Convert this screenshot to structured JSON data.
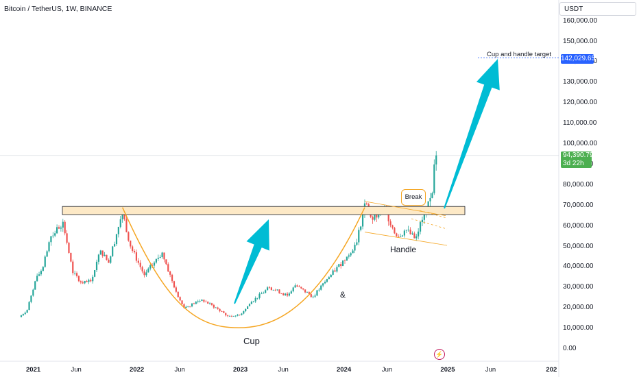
{
  "header": {
    "symbol_title": "Bitcoin / TetherUS, 1W, BINANCE",
    "currency": "USDT"
  },
  "price_axis": {
    "labels": [
      "160,000.00",
      "150,000.00",
      "140,000.00",
      "130,000.00",
      "120,000.00",
      "110,000.00",
      "100,000.00",
      "90,000.00",
      "80,000.00",
      "70,000.00",
      "60,000.00",
      "50,000.00",
      "40,000.00",
      "30,000.00",
      "20,000.00",
      "10,000.00",
      "0.00"
    ],
    "target_tag": "142,029.65",
    "last_price_tag": "94,390.79",
    "countdown": "3d 22h"
  },
  "time_axis": {
    "labels": [
      {
        "text": "2021",
        "bold": true
      },
      {
        "text": "Jun",
        "bold": false
      },
      {
        "text": "2022",
        "bold": true
      },
      {
        "text": "Jun",
        "bold": false
      },
      {
        "text": "2023",
        "bold": true
      },
      {
        "text": "Jun",
        "bold": false
      },
      {
        "text": "2024",
        "bold": true
      },
      {
        "text": "Jun",
        "bold": false
      },
      {
        "text": "2025",
        "bold": true
      },
      {
        "text": "Jun",
        "bold": false
      },
      {
        "text": "202",
        "bold": true
      }
    ]
  },
  "annotations": {
    "cup": "Cup",
    "ampersand": "&",
    "handle": "Handle",
    "break": "Break",
    "target": "Cup and handle target"
  },
  "colors": {
    "up": "#26a69a",
    "down": "#ef5350",
    "cup_line": "#f5a623",
    "zone_fill": "#fde9c6",
    "arrow": "#00bcd4",
    "target_tag": "#2962ff",
    "last_tag": "#4caf50"
  },
  "chart_data": {
    "type": "candlestick",
    "title": "Bitcoin / TetherUS, 1W, BINANCE",
    "unit": "USDT",
    "ylim": [
      0,
      165000
    ],
    "key_levels": {
      "resistance_zone": [
        65500,
        69500
      ],
      "cup_and_handle_target": 142029.65,
      "last_price": 94390.79
    },
    "weekly_close_path": [
      {
        "date": "2020-11-09",
        "close": 15500
      },
      {
        "date": "2020-12-07",
        "close": 19000
      },
      {
        "date": "2021-01-04",
        "close": 33000
      },
      {
        "date": "2021-02-01",
        "close": 40000
      },
      {
        "date": "2021-03-01",
        "close": 55000
      },
      {
        "date": "2021-04-12",
        "close": 62000
      },
      {
        "date": "2021-05-17",
        "close": 37000
      },
      {
        "date": "2021-06-21",
        "close": 32000
      },
      {
        "date": "2021-07-19",
        "close": 33000
      },
      {
        "date": "2021-08-23",
        "close": 48000
      },
      {
        "date": "2021-09-20",
        "close": 42000
      },
      {
        "date": "2021-11-08",
        "close": 67000
      },
      {
        "date": "2021-12-06",
        "close": 50000
      },
      {
        "date": "2022-01-24",
        "close": 36000
      },
      {
        "date": "2022-03-28",
        "close": 47000
      },
      {
        "date": "2022-05-09",
        "close": 30000
      },
      {
        "date": "2022-06-13",
        "close": 20000
      },
      {
        "date": "2022-08-15",
        "close": 24000
      },
      {
        "date": "2022-10-10",
        "close": 19500
      },
      {
        "date": "2022-11-14",
        "close": 16000
      },
      {
        "date": "2022-12-26",
        "close": 16500
      },
      {
        "date": "2023-02-06",
        "close": 23000
      },
      {
        "date": "2023-04-10",
        "close": 30000
      },
      {
        "date": "2023-06-12",
        "close": 26000
      },
      {
        "date": "2023-07-10",
        "close": 31000
      },
      {
        "date": "2023-09-11",
        "close": 25500
      },
      {
        "date": "2023-11-06",
        "close": 35000
      },
      {
        "date": "2024-01-08",
        "close": 45000
      },
      {
        "date": "2024-02-12",
        "close": 52000
      },
      {
        "date": "2024-03-11",
        "close": 71000
      },
      {
        "date": "2024-04-08",
        "close": 63000
      },
      {
        "date": "2024-05-20",
        "close": 68500
      },
      {
        "date": "2024-07-01",
        "close": 55000
      },
      {
        "date": "2024-08-05",
        "close": 58000
      },
      {
        "date": "2024-09-02",
        "close": 54000
      },
      {
        "date": "2024-10-14",
        "close": 67000
      },
      {
        "date": "2024-11-04",
        "close": 76000
      },
      {
        "date": "2024-11-11",
        "close": 90000
      },
      {
        "date": "2024-11-18",
        "close": 94390.79
      }
    ]
  }
}
